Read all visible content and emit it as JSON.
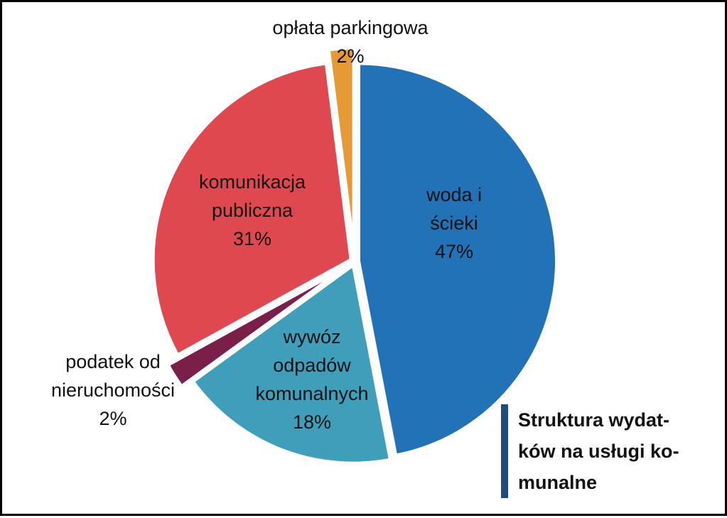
{
  "chart_data": {
    "type": "pie",
    "title_lines": [
      "Struktura wydat-",
      "ków na usługi ko-",
      "munalne"
    ],
    "slices": [
      {
        "lines": [
          "woda i",
          "ścieki"
        ],
        "percent_label": "47%",
        "value": 47,
        "color": "#2272b7",
        "exploded": false
      },
      {
        "lines": [
          "wywóz",
          "odpadów",
          "komunalnych"
        ],
        "percent_label": "18%",
        "value": 18,
        "color": "#3f9fbb",
        "exploded": false
      },
      {
        "lines": [
          "podatek od",
          "nieruchomości"
        ],
        "percent_label": "2%",
        "value": 2,
        "color": "#7a1f4a",
        "exploded": true
      },
      {
        "lines": [
          "komunikacja",
          "publiczna"
        ],
        "percent_label": "31%",
        "value": 31,
        "color": "#e0484f",
        "exploded": false
      },
      {
        "lines": [
          "opłata parkingowa"
        ],
        "percent_label": "2%",
        "value": 2,
        "color": "#e69a35",
        "exploded": true
      }
    ]
  }
}
